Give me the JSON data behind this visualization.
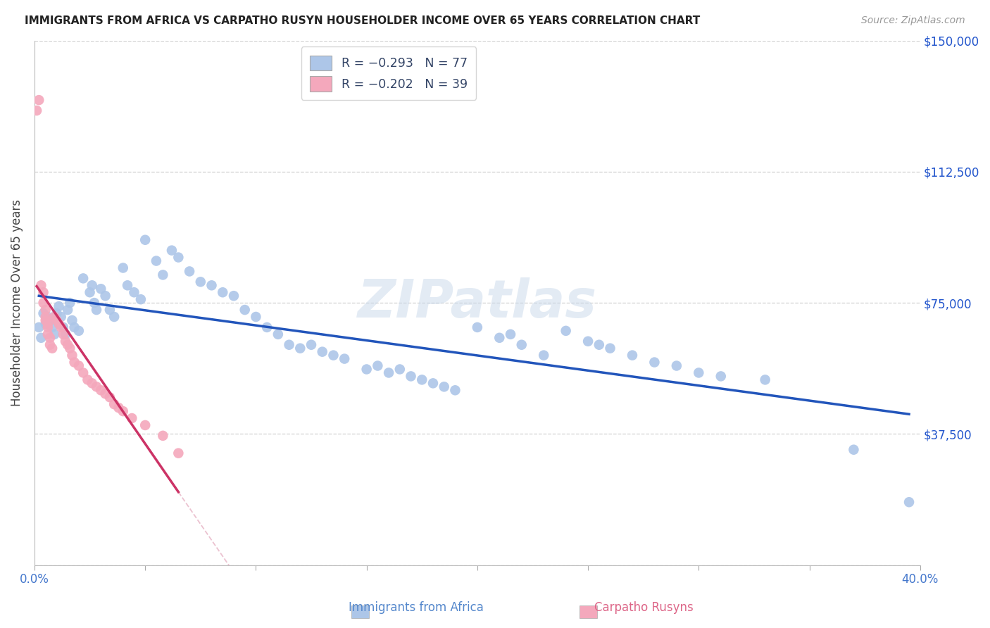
{
  "title": "IMMIGRANTS FROM AFRICA VS CARPATHO RUSYN HOUSEHOLDER INCOME OVER 65 YEARS CORRELATION CHART",
  "source": "Source: ZipAtlas.com",
  "ylabel": "Householder Income Over 65 years",
  "xlim": [
    0,
    0.4
  ],
  "ylim": [
    0,
    150000
  ],
  "xticks": [
    0.0,
    0.05,
    0.1,
    0.15,
    0.2,
    0.25,
    0.3,
    0.35,
    0.4
  ],
  "yticks": [
    0,
    37500,
    75000,
    112500,
    150000
  ],
  "ytick_labels": [
    "",
    "$37,500",
    "$75,000",
    "$112,500",
    "$150,000"
  ],
  "blue_color": "#adc6e8",
  "pink_color": "#f4a8bc",
  "blue_line_color": "#2255bb",
  "pink_line_color": "#cc3366",
  "diag_line_color": "#e8b8c8",
  "watermark": "ZIPatlas",
  "legend_R1": "R = −0.293",
  "legend_N1": "N = 77",
  "legend_R2": "R = −0.202",
  "legend_N2": "N = 39",
  "legend_label1": "Immigrants from Africa",
  "legend_label2": "Carpatho Rusyns",
  "blue_x": [
    0.002,
    0.003,
    0.004,
    0.005,
    0.006,
    0.007,
    0.008,
    0.009,
    0.01,
    0.011,
    0.012,
    0.013,
    0.014,
    0.015,
    0.016,
    0.017,
    0.018,
    0.02,
    0.022,
    0.025,
    0.026,
    0.027,
    0.028,
    0.03,
    0.032,
    0.034,
    0.036,
    0.04,
    0.042,
    0.045,
    0.048,
    0.05,
    0.055,
    0.058,
    0.062,
    0.065,
    0.07,
    0.075,
    0.08,
    0.085,
    0.09,
    0.095,
    0.1,
    0.105,
    0.11,
    0.115,
    0.12,
    0.125,
    0.13,
    0.135,
    0.14,
    0.15,
    0.155,
    0.16,
    0.165,
    0.17,
    0.175,
    0.18,
    0.185,
    0.19,
    0.2,
    0.21,
    0.215,
    0.22,
    0.23,
    0.24,
    0.25,
    0.255,
    0.26,
    0.27,
    0.28,
    0.29,
    0.3,
    0.31,
    0.33,
    0.37,
    0.395
  ],
  "blue_y": [
    68000,
    65000,
    72000,
    69000,
    71000,
    70000,
    68000,
    66000,
    72000,
    74000,
    71000,
    68000,
    66000,
    73000,
    75000,
    70000,
    68000,
    67000,
    82000,
    78000,
    80000,
    75000,
    73000,
    79000,
    77000,
    73000,
    71000,
    85000,
    80000,
    78000,
    76000,
    93000,
    87000,
    83000,
    90000,
    88000,
    84000,
    81000,
    80000,
    78000,
    77000,
    73000,
    71000,
    68000,
    66000,
    63000,
    62000,
    63000,
    61000,
    60000,
    59000,
    56000,
    57000,
    55000,
    56000,
    54000,
    53000,
    52000,
    51000,
    50000,
    68000,
    65000,
    66000,
    63000,
    60000,
    67000,
    64000,
    63000,
    62000,
    60000,
    58000,
    57000,
    55000,
    54000,
    53000,
    33000,
    18000
  ],
  "pink_x": [
    0.001,
    0.002,
    0.003,
    0.004,
    0.004,
    0.005,
    0.005,
    0.005,
    0.006,
    0.006,
    0.006,
    0.007,
    0.007,
    0.008,
    0.009,
    0.01,
    0.011,
    0.012,
    0.013,
    0.014,
    0.015,
    0.016,
    0.017,
    0.018,
    0.02,
    0.022,
    0.024,
    0.026,
    0.028,
    0.03,
    0.032,
    0.034,
    0.036,
    0.038,
    0.04,
    0.044,
    0.05,
    0.058,
    0.065
  ],
  "pink_y": [
    130000,
    133000,
    80000,
    78000,
    75000,
    73000,
    70000,
    71000,
    69000,
    68000,
    66000,
    65000,
    63000,
    62000,
    71000,
    70000,
    69000,
    68000,
    66000,
    64000,
    63000,
    62000,
    60000,
    58000,
    57000,
    55000,
    53000,
    52000,
    51000,
    50000,
    49000,
    48000,
    46000,
    45000,
    44000,
    42000,
    40000,
    37000,
    32000
  ]
}
